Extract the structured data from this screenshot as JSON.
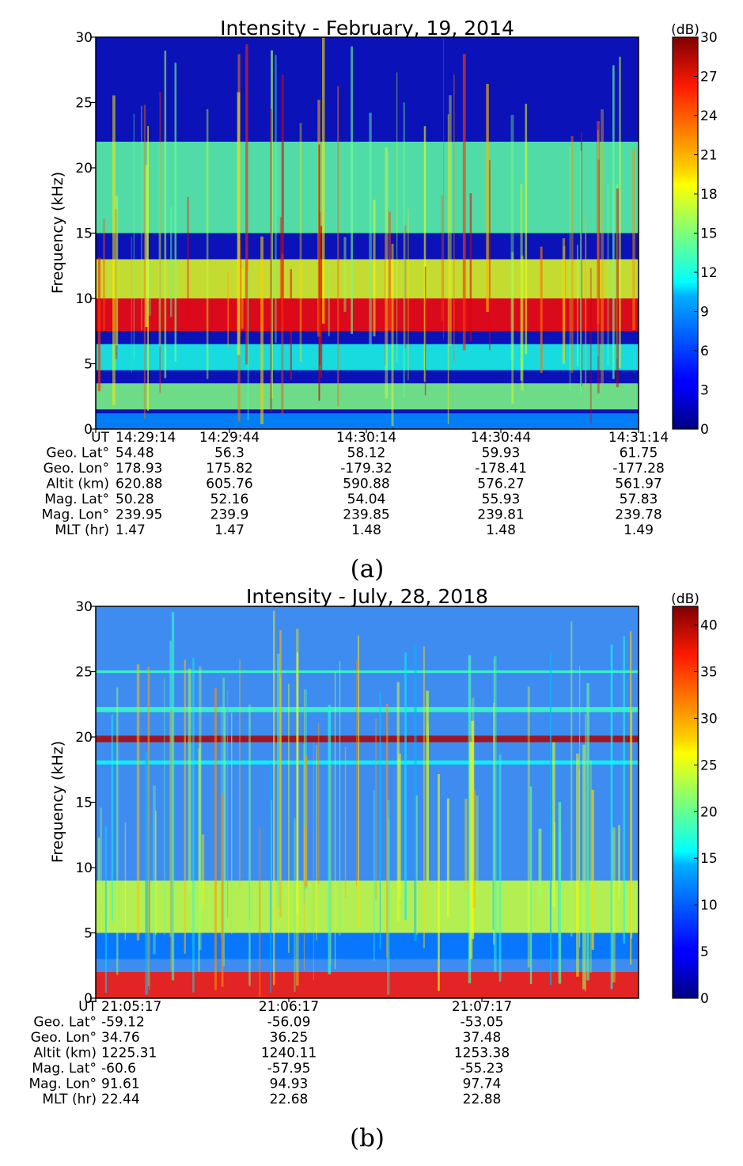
{
  "chart_data": [
    {
      "type": "heatmap",
      "title": "Intensity - February, 19, 2014",
      "ylabel": "Frequency (kHz)",
      "ylim": [
        0,
        30
      ],
      "yticks": [
        "0",
        "5",
        "10",
        "15",
        "20",
        "25",
        "30"
      ],
      "colorbar": {
        "label": "(dB)",
        "range": [
          0,
          30
        ],
        "ticks": [
          "0",
          "3",
          "6",
          "9",
          "12",
          "15",
          "18",
          "21",
          "24",
          "27",
          "30"
        ]
      },
      "bands": [
        {
          "fmin": 0,
          "fmax": 1.2,
          "level": 8
        },
        {
          "fmin": 1.5,
          "fmax": 3.5,
          "level": 15
        },
        {
          "fmin": 4.5,
          "fmax": 6.5,
          "level": 12
        },
        {
          "fmin": 7.5,
          "fmax": 10,
          "level": 26
        },
        {
          "fmin": 10,
          "fmax": 13,
          "level": 18
        },
        {
          "fmin": 15,
          "fmax": 22,
          "level": 14
        }
      ],
      "axis_rows": [
        {
          "label": "UT",
          "values": [
            "14:29:14",
            "14:29:44",
            "14:30:14",
            "14:30:44",
            "14:31:14"
          ]
        },
        {
          "label": "Geo. Lat°",
          "values": [
            "54.48",
            "56.3",
            "58.12",
            "59.93",
            "61.75"
          ]
        },
        {
          "label": "Geo. Lon°",
          "values": [
            "178.93",
            "175.82",
            "-179.32",
            "-178.41",
            "-177.28"
          ]
        },
        {
          "label": "Altit (km)",
          "values": [
            "620.88",
            "605.76",
            "590.88",
            "576.27",
            "561.97"
          ]
        },
        {
          "label": "Mag. Lat°",
          "values": [
            "50.28",
            "52.16",
            "54.04",
            "55.93",
            "57.83"
          ]
        },
        {
          "label": "Mag. Lon°",
          "values": [
            "239.95",
            "239.9",
            "239.85",
            "239.81",
            "239.78"
          ]
        },
        {
          "label": "MLT (hr)",
          "values": [
            "1.47",
            "1.47",
            "1.48",
            "1.48",
            "1.49"
          ]
        }
      ],
      "caption": "(a)"
    },
    {
      "type": "heatmap",
      "title": "Intensity - July, 28, 2018",
      "ylabel": "Frequency (kHz)",
      "ylim": [
        0,
        30
      ],
      "yticks": [
        "0",
        "5",
        "10",
        "15",
        "20",
        "25",
        "30"
      ],
      "colorbar": {
        "label": "(dB)",
        "range": [
          0,
          42
        ],
        "ticks": [
          "0",
          "5",
          "10",
          "15",
          "20",
          "25",
          "30",
          "35",
          "40"
        ]
      },
      "bands": [
        {
          "fmin": 0,
          "fmax": 2,
          "level": 36
        },
        {
          "fmin": 3,
          "fmax": 5,
          "level": 10
        },
        {
          "fmin": 5,
          "fmax": 9,
          "level": 24
        },
        {
          "fmin": 19.6,
          "fmax": 20.1,
          "level": 40
        },
        {
          "fmin": 21.9,
          "fmax": 22.3,
          "level": 18
        },
        {
          "fmin": 24.9,
          "fmax": 25.1,
          "level": 18
        },
        {
          "fmin": 17.9,
          "fmax": 18.2,
          "level": 16
        }
      ],
      "axis_rows": [
        {
          "label": "UT",
          "values": [
            "21:05:17",
            "21:06:17",
            "21:07:17"
          ]
        },
        {
          "label": "Geo. Lat°",
          "values": [
            "-59.12",
            "-56.09",
            "-53.05"
          ]
        },
        {
          "label": "Geo. Lon°",
          "values": [
            "34.76",
            "36.25",
            "37.48"
          ]
        },
        {
          "label": "Altit (km)",
          "values": [
            "1225.31",
            "1240.11",
            "1253.38"
          ]
        },
        {
          "label": "Mag. Lat°",
          "values": [
            "-60.6",
            "-57.95",
            "-55.23"
          ]
        },
        {
          "label": "Mag. Lon°",
          "values": [
            "91.61",
            "94.93",
            "97.74"
          ]
        },
        {
          "label": "MLT (hr)",
          "values": [
            "22.44",
            "22.68",
            "22.88"
          ]
        }
      ],
      "caption": "(b)"
    }
  ]
}
